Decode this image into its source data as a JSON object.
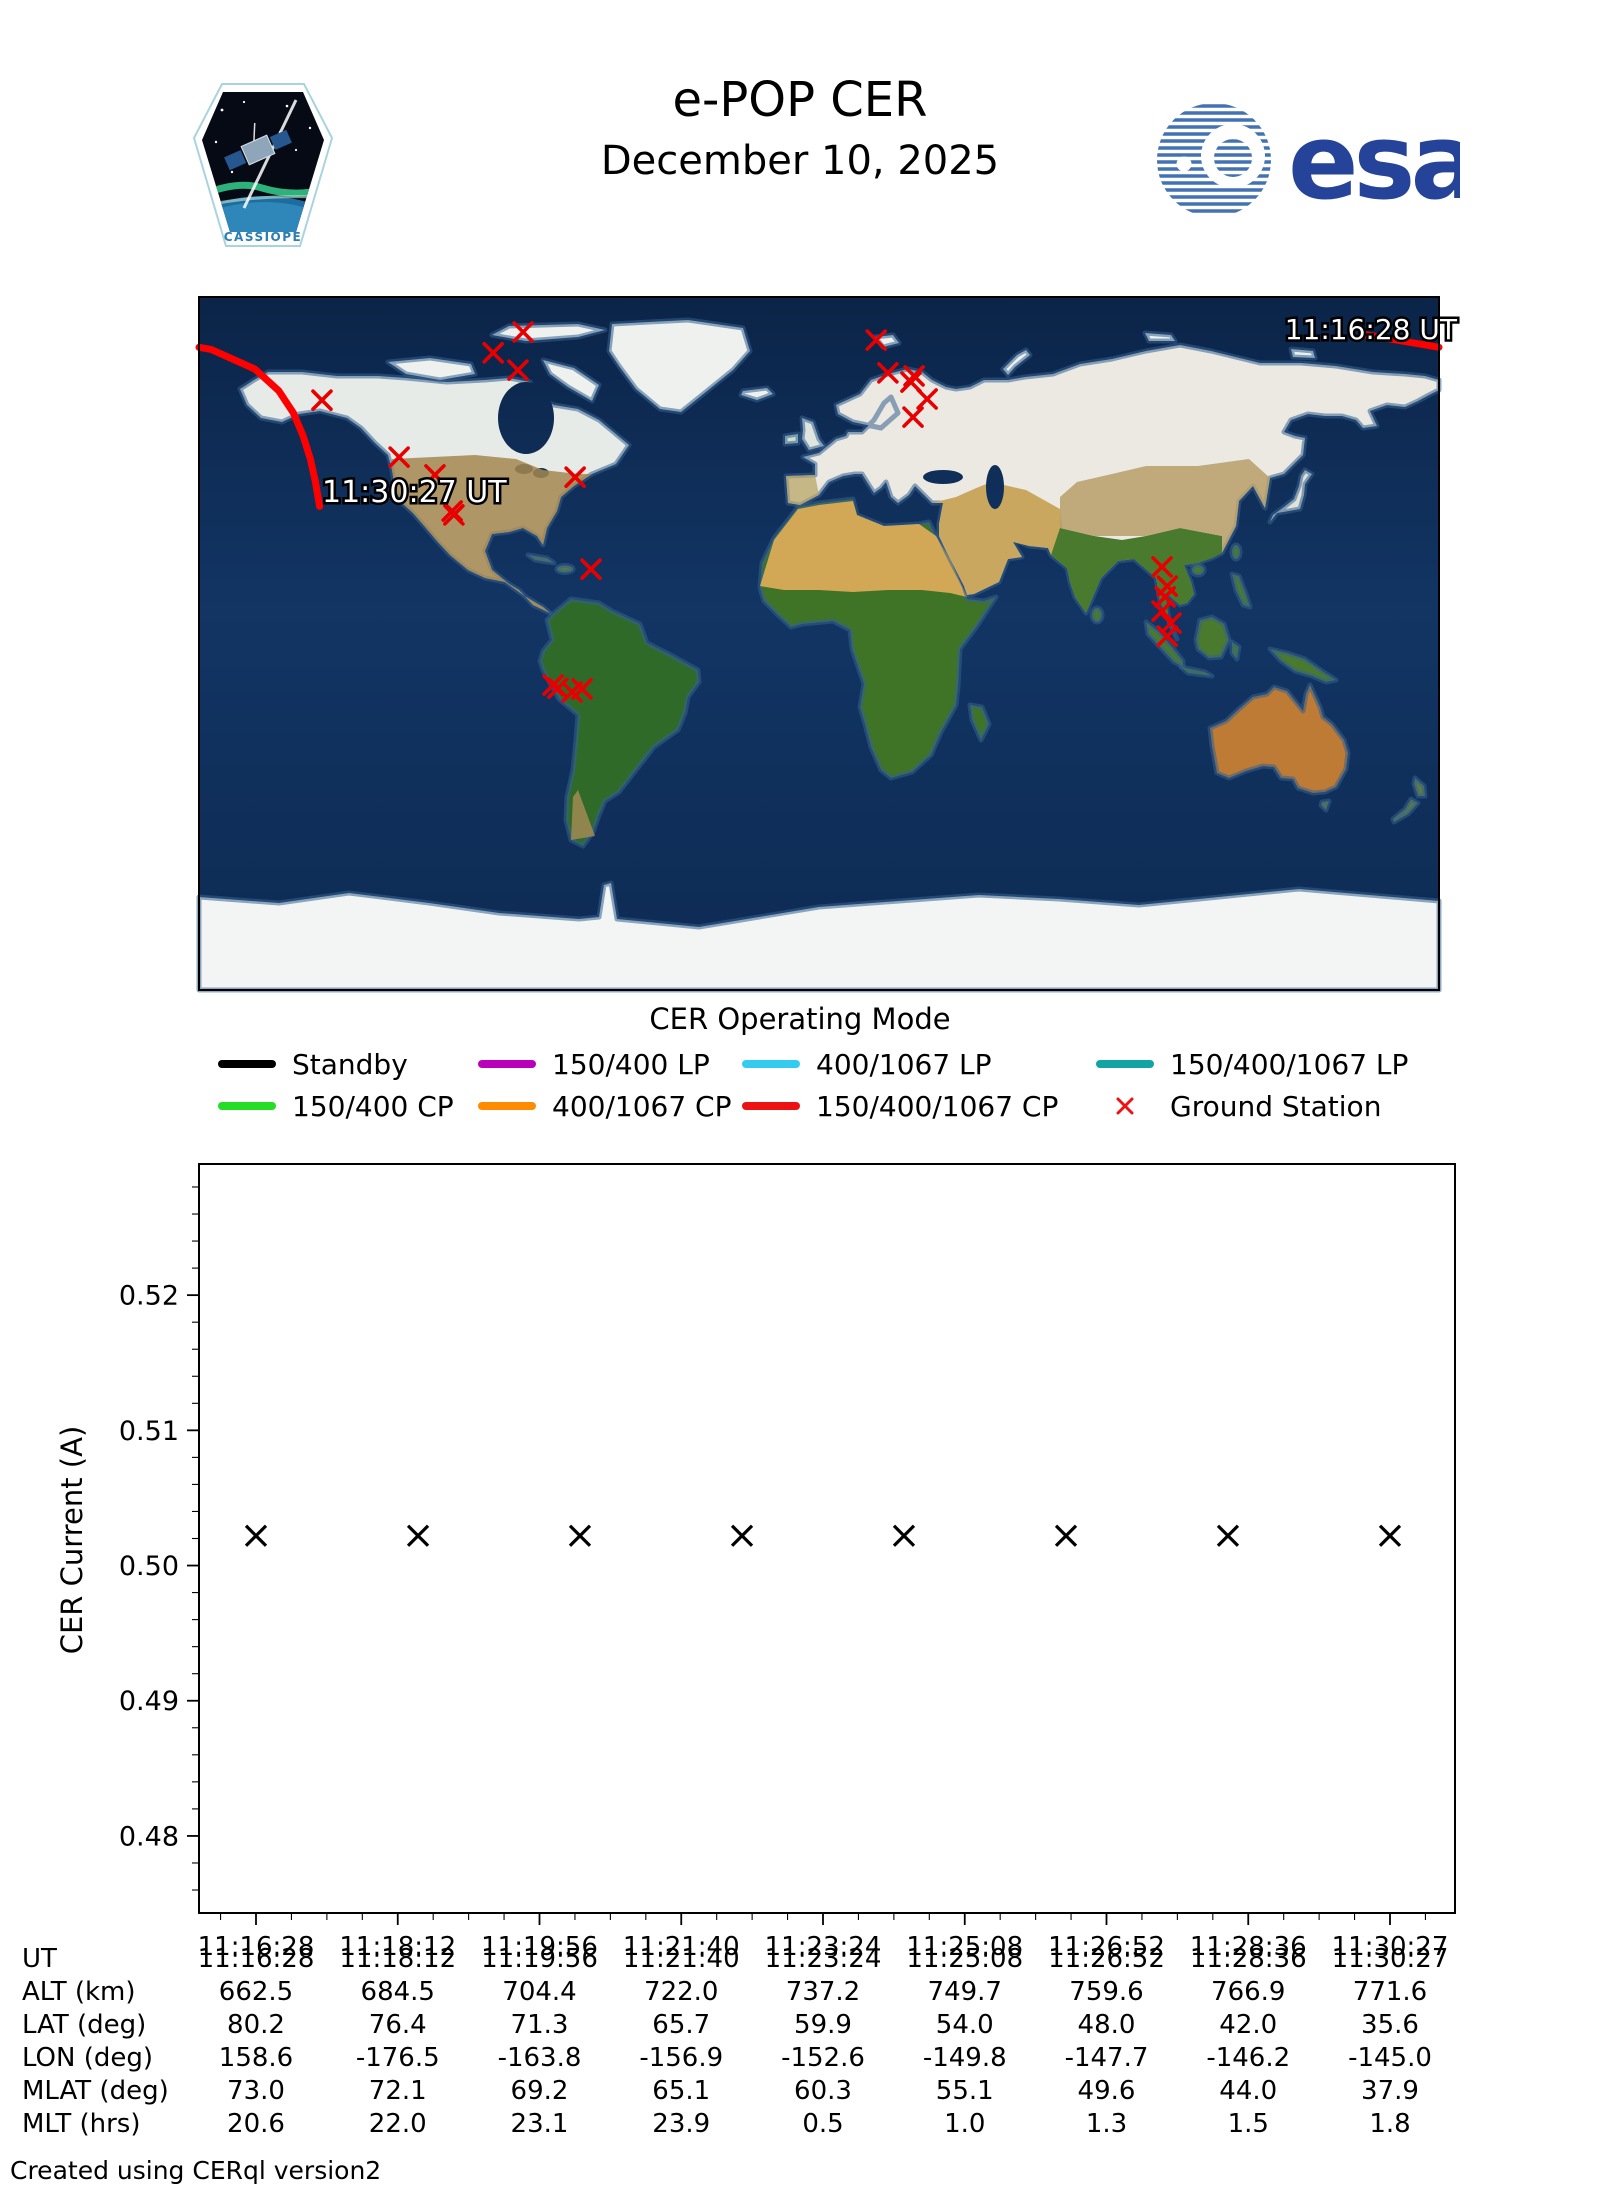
{
  "header": {
    "title": "e-POP CER",
    "date": "December 10, 2025",
    "patch_text": "CASSIOPE",
    "esa_text": "esa"
  },
  "map": {
    "start_time_label": "11:16:28 UT",
    "end_time_label": "11:30:27 UT",
    "trajectory_color": "#ff0000",
    "ground_station_color": "#e80000",
    "ground_stations_lonlat": [
      [
        -85.9,
        80.9
      ],
      [
        -94.6,
        75.5
      ],
      [
        -87.4,
        71.0
      ],
      [
        -144.3,
        63.2
      ],
      [
        16.6,
        78.8
      ],
      [
        20.0,
        70.3
      ],
      [
        27.6,
        69.5
      ],
      [
        26.7,
        67.9
      ],
      [
        31.4,
        63.5
      ],
      [
        27.3,
        58.8
      ],
      [
        -121.9,
        48.4
      ],
      [
        -111.5,
        43.8
      ],
      [
        -106.5,
        34.4
      ],
      [
        -106.0,
        33.4
      ],
      [
        -70.8,
        43.2
      ],
      [
        -66.2,
        19.3
      ],
      [
        -77.2,
        -10.8
      ],
      [
        -75.8,
        -11.6
      ],
      [
        -71.7,
        -12.6
      ],
      [
        -68.8,
        -11.8
      ],
      [
        99.6,
        19.9
      ],
      [
        101.1,
        14.9
      ],
      [
        100.5,
        12.1
      ],
      [
        99.6,
        8.4
      ],
      [
        102.2,
        5.3
      ],
      [
        101.1,
        1.9
      ]
    ],
    "trajectory_lonlat": [
      [
        158.6,
        80.2
      ],
      [
        -176.5,
        76.4
      ],
      [
        -163.8,
        71.3
      ],
      [
        -156.9,
        65.7
      ],
      [
        -152.6,
        59.9
      ],
      [
        -149.8,
        54.0
      ],
      [
        -147.7,
        48.0
      ],
      [
        -146.2,
        42.0
      ],
      [
        -145.0,
        35.6
      ]
    ]
  },
  "legend": {
    "title": "CER Operating Mode",
    "items": [
      {
        "label": "Standby",
        "color": "#000000",
        "type": "line"
      },
      {
        "label": "150/400 LP",
        "color": "#bb00bb",
        "type": "line"
      },
      {
        "label": "400/1067 LP",
        "color": "#33ccf0",
        "type": "line"
      },
      {
        "label": "150/400/1067 LP",
        "color": "#12a3a3",
        "type": "line"
      },
      {
        "label": "150/400 CP",
        "color": "#24dd24",
        "type": "line"
      },
      {
        "label": "400/1067 CP",
        "color": "#ff8c00",
        "type": "line"
      },
      {
        "label": "150/400/1067 CP",
        "color": "#ee1111",
        "type": "line"
      },
      {
        "label": "Ground Station",
        "color": "#ee1111",
        "type": "x-marker"
      }
    ]
  },
  "chart_data": {
    "type": "scatter",
    "ylabel": "CER Current (A)",
    "marker": "x",
    "marker_color": "#000000",
    "x_tick_labels": [
      "11:16:28",
      "11:18:12",
      "11:19:56",
      "11:21:40",
      "11:23:24",
      "11:25:08",
      "11:26:52",
      "11:28:36",
      "11:30:27"
    ],
    "y_ticks": [
      0.48,
      0.49,
      0.5,
      0.51,
      0.52
    ],
    "y_minor_step": 0.002,
    "ylim": [
      0.4743,
      0.5297
    ],
    "grid": false,
    "series": [
      {
        "name": "CER Current",
        "x_frac": [
          0,
          0.1429,
          0.2857,
          0.4286,
          0.5714,
          0.7143,
          0.8571,
          1.0
        ],
        "values": [
          0.5022,
          0.5022,
          0.5022,
          0.5022,
          0.5022,
          0.5022,
          0.5022,
          0.5022
        ]
      }
    ]
  },
  "table": {
    "rows": [
      {
        "label": "UT",
        "values": [
          "11:16:28",
          "11:18:12",
          "11:19:56",
          "11:21:40",
          "11:23:24",
          "11:25:08",
          "11:26:52",
          "11:28:36",
          "11:30:27"
        ]
      },
      {
        "label": "ALT (km)",
        "values": [
          "662.5",
          "684.5",
          "704.4",
          "722.0",
          "737.2",
          "749.7",
          "759.6",
          "766.9",
          "771.6"
        ]
      },
      {
        "label": "LAT (deg)",
        "values": [
          "80.2",
          "76.4",
          "71.3",
          "65.7",
          "59.9",
          "54.0",
          "48.0",
          "42.0",
          "35.6"
        ]
      },
      {
        "label": "LON (deg)",
        "values": [
          "158.6",
          "-176.5",
          "-163.8",
          "-156.9",
          "-152.6",
          "-149.8",
          "-147.7",
          "-146.2",
          "-145.0"
        ]
      },
      {
        "label": "MLAT (deg)",
        "values": [
          "73.0",
          "72.1",
          "69.2",
          "65.1",
          "60.3",
          "55.1",
          "49.6",
          "44.0",
          "37.9"
        ]
      },
      {
        "label": "MLT (hrs)",
        "values": [
          "20.6",
          "22.0",
          "23.1",
          "23.9",
          "0.5",
          "1.0",
          "1.3",
          "1.5",
          "1.8"
        ]
      }
    ]
  },
  "footer": {
    "credit": "Created using CERql version2"
  }
}
